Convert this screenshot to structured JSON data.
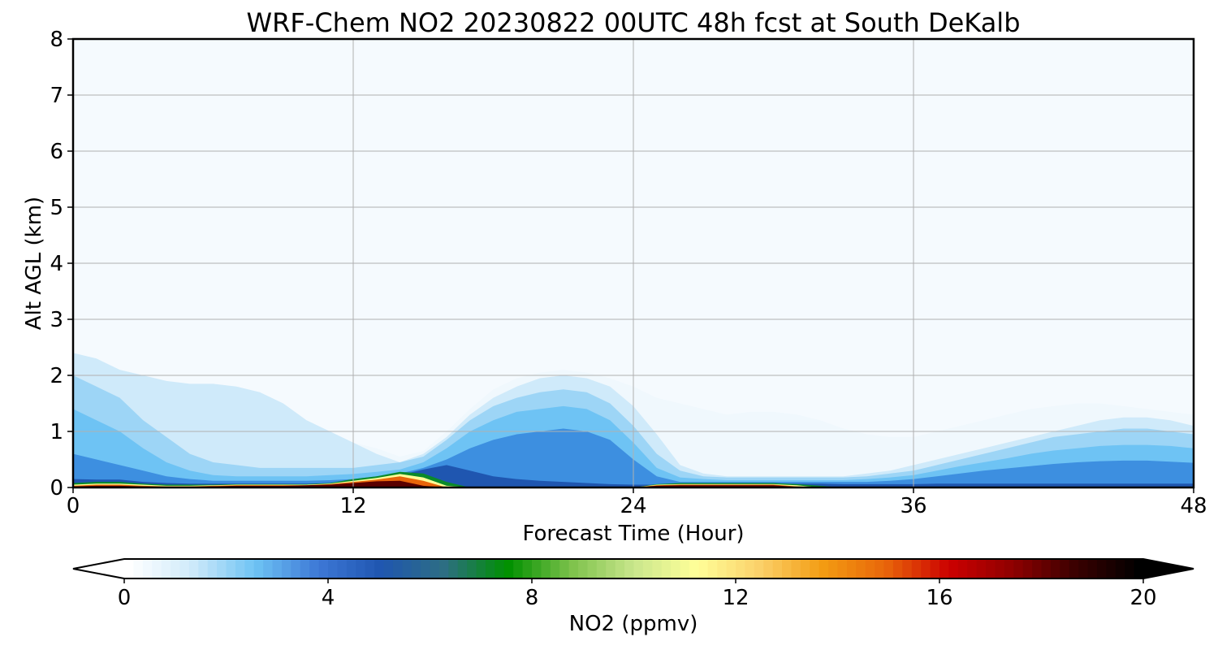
{
  "chart_data": {
    "type": "heatmap",
    "title": "WRF-Chem NO2  20230822 00UTC 48h fcst at South DeKalb",
    "xlabel": "Forecast Time (Hour)",
    "ylabel": "Alt AGL (km)",
    "xlim": [
      0,
      48
    ],
    "ylim": [
      0,
      8
    ],
    "x_ticks": [
      0,
      12,
      24,
      36,
      48
    ],
    "y_ticks": [
      0,
      1,
      2,
      3,
      4,
      5,
      6,
      7,
      8
    ],
    "grid": true,
    "colorbar": {
      "label": "NO2  (ppmv)",
      "range": [
        0,
        20
      ],
      "ticks": [
        0,
        4,
        8,
        12,
        16,
        20
      ],
      "extend": "both",
      "orientation": "horizontal",
      "colors": [
        "#ffffff",
        "#cfeafa",
        "#6ec3f4",
        "#3d78d6",
        "#1f56b0",
        "#2d6e83",
        "#009000",
        "#7cc14a",
        "#c9e68c",
        "#ffff99",
        "#fbd069",
        "#f39c12",
        "#e8650a",
        "#cc0000",
        "#8f0000",
        "#3a0000",
        "#000000"
      ]
    },
    "layers": [
      {
        "min_ppmv": 0.3,
        "color": "#f0f8fd",
        "top_km": [
          1.95,
          1.9,
          1.9,
          1.85,
          1.85,
          1.8,
          1.75,
          1.7,
          1.55,
          1.1,
          0.95,
          0.85,
          0.8,
          0.7,
          0.55,
          0.65,
          1.0,
          1.4,
          1.75,
          1.95,
          2.05,
          2.1,
          2.05,
          1.95,
          1.8,
          1.6,
          1.5,
          1.4,
          1.3,
          1.35,
          1.35,
          1.3,
          1.2,
          1.05,
          0.95,
          0.9,
          0.9,
          1.0,
          1.1,
          1.2,
          1.3,
          1.4,
          1.45,
          1.5,
          1.5,
          1.45,
          1.4,
          1.35,
          1.3
        ]
      },
      {
        "min_ppmv": 0.8,
        "color": "#cfeafa",
        "top_km": [
          2.4,
          2.3,
          2.1,
          2.0,
          1.9,
          1.85,
          1.85,
          1.8,
          1.7,
          1.5,
          1.2,
          1.0,
          0.8,
          0.6,
          0.45,
          0.6,
          0.9,
          1.3,
          1.6,
          1.8,
          1.95,
          2.0,
          1.95,
          1.8,
          1.45,
          0.95,
          0.4,
          0.25,
          0.2,
          0.2,
          0.2,
          0.2,
          0.2,
          0.2,
          0.25,
          0.3,
          0.4,
          0.5,
          0.6,
          0.7,
          0.8,
          0.9,
          1.0,
          1.1,
          1.2,
          1.25,
          1.25,
          1.2,
          1.1
        ]
      },
      {
        "min_ppmv": 2.0,
        "color": "#9dd5f6",
        "top_km": [
          2.0,
          1.8,
          1.6,
          1.2,
          0.9,
          0.6,
          0.45,
          0.4,
          0.35,
          0.35,
          0.35,
          0.35,
          0.35,
          0.4,
          0.45,
          0.55,
          0.85,
          1.2,
          1.45,
          1.6,
          1.7,
          1.75,
          1.7,
          1.5,
          1.1,
          0.6,
          0.3,
          0.2,
          0.18,
          0.18,
          0.18,
          0.18,
          0.18,
          0.18,
          0.2,
          0.25,
          0.3,
          0.4,
          0.5,
          0.6,
          0.7,
          0.8,
          0.9,
          0.95,
          1.0,
          1.05,
          1.05,
          1.0,
          0.95
        ]
      },
      {
        "min_ppmv": 3.0,
        "color": "#6ec3f4",
        "top_km": [
          1.4,
          1.2,
          1.0,
          0.7,
          0.45,
          0.3,
          0.22,
          0.2,
          0.2,
          0.2,
          0.2,
          0.22,
          0.24,
          0.28,
          0.32,
          0.45,
          0.7,
          1.0,
          1.2,
          1.35,
          1.4,
          1.45,
          1.4,
          1.2,
          0.8,
          0.35,
          0.18,
          0.15,
          0.13,
          0.13,
          0.13,
          0.13,
          0.13,
          0.13,
          0.15,
          0.18,
          0.22,
          0.3,
          0.38,
          0.45,
          0.52,
          0.6,
          0.66,
          0.7,
          0.74,
          0.76,
          0.76,
          0.74,
          0.7
        ]
      },
      {
        "min_ppmv": 4.0,
        "color": "#3d8fe0",
        "top_km": [
          0.6,
          0.5,
          0.4,
          0.3,
          0.2,
          0.15,
          0.12,
          0.12,
          0.12,
          0.12,
          0.12,
          0.13,
          0.15,
          0.2,
          0.25,
          0.35,
          0.5,
          0.7,
          0.85,
          0.95,
          1.0,
          1.05,
          1.0,
          0.85,
          0.5,
          0.2,
          0.1,
          0.1,
          0.1,
          0.1,
          0.1,
          0.1,
          0.1,
          0.1,
          0.1,
          0.12,
          0.15,
          0.2,
          0.25,
          0.3,
          0.34,
          0.38,
          0.42,
          0.45,
          0.47,
          0.48,
          0.48,
          0.46,
          0.44
        ]
      },
      {
        "min_ppmv": 5.0,
        "color": "#1f56b0",
        "top_km": [
          0.15,
          0.14,
          0.14,
          0.1,
          0.08,
          0.07,
          0.07,
          0.07,
          0.07,
          0.07,
          0.07,
          0.08,
          0.12,
          0.16,
          0.22,
          0.32,
          0.4,
          0.3,
          0.2,
          0.15,
          0.12,
          0.1,
          0.08,
          0.06,
          0.05,
          0.05,
          0.06,
          0.07,
          0.07,
          0.07,
          0.07,
          0.07,
          0.07,
          0.06,
          0.06,
          0.06,
          0.06,
          0.07,
          0.07,
          0.07,
          0.07,
          0.07,
          0.07,
          0.07,
          0.07,
          0.07,
          0.07,
          0.07,
          0.07
        ]
      },
      {
        "min_ppmv": 6.5,
        "color": "#0a8a2a",
        "top_km": [
          0.08,
          0.1,
          0.1,
          0.07,
          0.05,
          0.05,
          0.05,
          0.06,
          0.06,
          0.06,
          0.06,
          0.08,
          0.15,
          0.2,
          0.28,
          0.25,
          0.1,
          0.0,
          0.0,
          0.0,
          0.0,
          0.0,
          0.0,
          0.0,
          0.0,
          0.06,
          0.08,
          0.08,
          0.08,
          0.08,
          0.08,
          0.06,
          0.03,
          0.0,
          0.0,
          0.0,
          0.0,
          0.0,
          0.0,
          0.0,
          0.0,
          0.0,
          0.0,
          0.0,
          0.0,
          0.0,
          0.0,
          0.0,
          0.0
        ]
      },
      {
        "min_ppmv": 9.5,
        "color": "#ffff99",
        "top_km": [
          0.05,
          0.07,
          0.07,
          0.05,
          0.03,
          0.03,
          0.04,
          0.05,
          0.05,
          0.05,
          0.05,
          0.07,
          0.12,
          0.17,
          0.24,
          0.18,
          0.03,
          0.0,
          0.0,
          0.0,
          0.0,
          0.0,
          0.0,
          0.0,
          0.0,
          0.05,
          0.06,
          0.06,
          0.06,
          0.06,
          0.06,
          0.04,
          0.0,
          0.0,
          0.0,
          0.0,
          0.0,
          0.0,
          0.0,
          0.0,
          0.0,
          0.0,
          0.0,
          0.0,
          0.0,
          0.0,
          0.0,
          0.0,
          0.0
        ]
      },
      {
        "min_ppmv": 12.5,
        "color": "#e8650a",
        "top_km": [
          0.03,
          0.05,
          0.05,
          0.03,
          0.02,
          0.02,
          0.03,
          0.04,
          0.04,
          0.04,
          0.04,
          0.06,
          0.1,
          0.14,
          0.2,
          0.12,
          0.0,
          0.0,
          0.0,
          0.0,
          0.0,
          0.0,
          0.0,
          0.0,
          0.0,
          0.04,
          0.05,
          0.05,
          0.05,
          0.05,
          0.05,
          0.02,
          0.0,
          0.0,
          0.0,
          0.0,
          0.0,
          0.0,
          0.0,
          0.0,
          0.0,
          0.0,
          0.0,
          0.0,
          0.0,
          0.0,
          0.0,
          0.0,
          0.0
        ]
      },
      {
        "min_ppmv": 16.5,
        "color": "#5a0000",
        "top_km": [
          0.02,
          0.03,
          0.03,
          0.02,
          0.01,
          0.01,
          0.02,
          0.03,
          0.03,
          0.03,
          0.04,
          0.05,
          0.08,
          0.11,
          0.12,
          0.03,
          0.0,
          0.0,
          0.0,
          0.0,
          0.0,
          0.0,
          0.0,
          0.0,
          0.0,
          0.03,
          0.04,
          0.04,
          0.04,
          0.04,
          0.04,
          0.01,
          0.0,
          0.0,
          0.0,
          0.0,
          0.0,
          0.0,
          0.0,
          0.0,
          0.0,
          0.0,
          0.0,
          0.0,
          0.0,
          0.0,
          0.0,
          0.0,
          0.0
        ]
      }
    ]
  }
}
